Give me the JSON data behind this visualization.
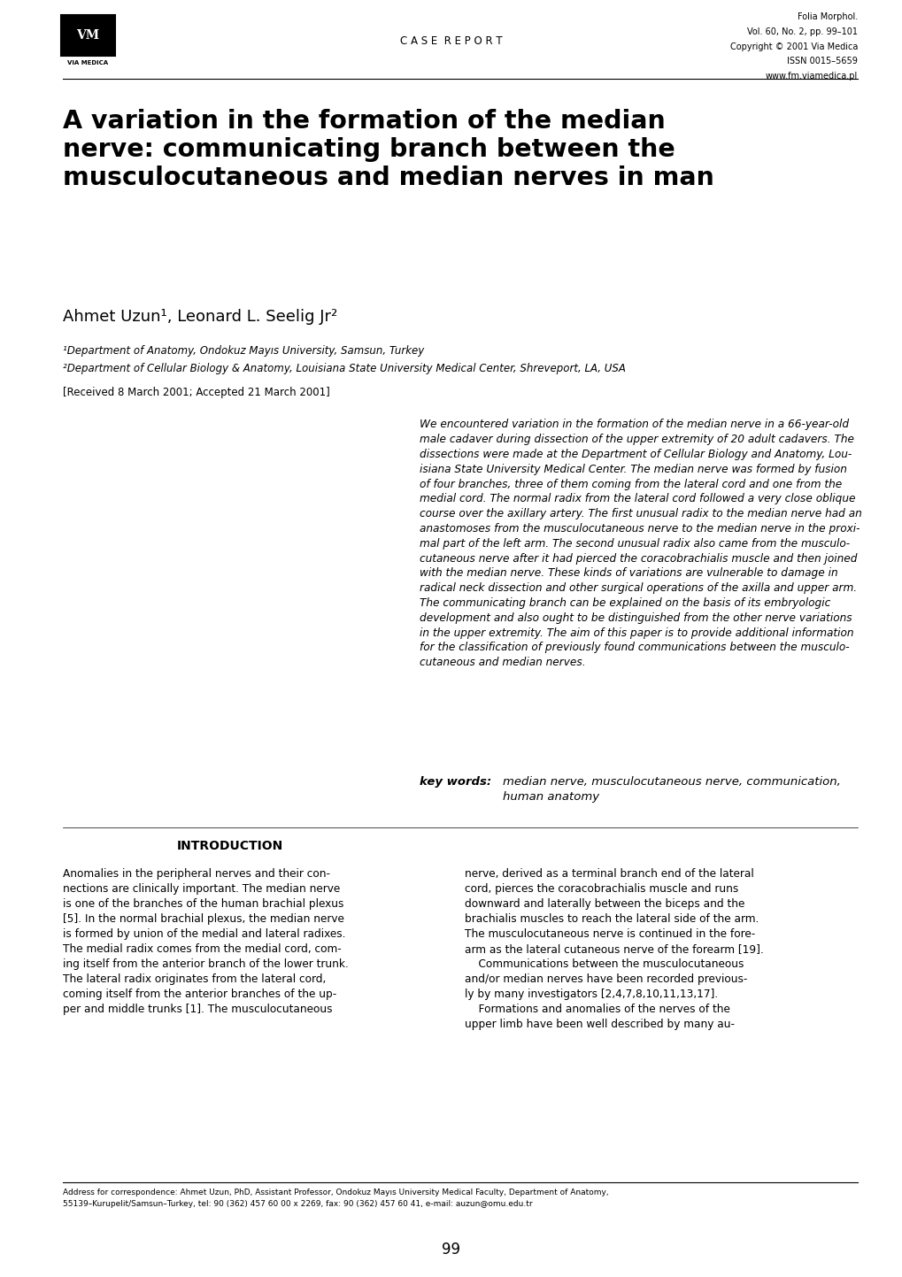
{
  "page_width": 10.2,
  "page_height": 14.43,
  "bg_color": "#ffffff",
  "header": {
    "journal_name": "Folia Morphol.",
    "journal_vol": "Vol. 60, No. 2, pp. 99–101",
    "journal_copy": "Copyright © 2001 Via Medica",
    "journal_issn": "ISSN 0015–5659",
    "journal_web": "www.fm.viamedica.pl",
    "section_label": "C A S E  R E P O R T"
  },
  "title": "A variation in the formation of the median\nnerve: communicating branch between the\nmusculocutaneous and median nerves in man",
  "authors": "Ahmet Uzun¹, Leonard L. Seelig Jr²",
  "affil1": "¹Department of Anatomy, Ondokuz Mayıs University, Samsun, Turkey",
  "affil2": "²Department of Cellular Biology & Anatomy, Louisiana State University Medical Center, Shreveport, LA, USA",
  "received": "[Received 8 March 2001; Accepted 21 March 2001]",
  "abstract": "We encountered variation in the formation of the median nerve in a 66-year-old\nmale cadaver during dissection of the upper extremity of 20 adult cadavers. The\ndissections were made at the Department of Cellular Biology and Anatomy, Lou-\nisiana State University Medical Center. The median nerve was formed by fusion\nof four branches, three of them coming from the lateral cord and one from the\nmedial cord. The normal radix from the lateral cord followed a very close oblique\ncourse over the axillary artery. The first unusual radix to the median nerve had an\nanastomoses from the musculocutaneous nerve to the median nerve in the proxi-\nmal part of the left arm. The second unusual radix also came from the musculo-\ncutaneous nerve after it had pierced the coracobrachialis muscle and then joined\nwith the median nerve. These kinds of variations are vulnerable to damage in\nradical neck dissection and other surgical operations of the axilla and upper arm.\nThe communicating branch can be explained on the basis of its embryologic\ndevelopment and also ought to be distinguished from the other nerve variations\nin the upper extremity. The aim of this paper is to provide additional information\nfor the classification of previously found communications between the musculo-\ncutaneous and median nerves.",
  "keywords_label": "key words: ",
  "keywords": "median nerve, musculocutaneous nerve, communication,\nhuman anatomy",
  "intro_heading": "INTRODUCTION",
  "intro_col1": "Anomalies in the peripheral nerves and their con-\nnections are clinically important. The median nerve\nis one of the branches of the human brachial plexus\n[5]. In the normal brachial plexus, the median nerve\nis formed by union of the medial and lateral radixes.\nThe medial radix comes from the medial cord, com-\ning itself from the anterior branch of the lower trunk.\nThe lateral radix originates from the lateral cord,\ncoming itself from the anterior branches of the up-\nper and middle trunks [1]. The musculocutaneous",
  "intro_col2": "nerve, derived as a terminal branch end of the lateral\ncord, pierces the coracobrachialis muscle and runs\ndownward and laterally between the biceps and the\nbrachialis muscles to reach the lateral side of the arm.\nThe musculocutaneous nerve is continued in the fore-\narm as the lateral cutaneous nerve of the forearm [19].\n    Communications between the musculocutaneous\nand/or median nerves have been recorded previous-\nly by many investigators [2,4,7,8,10,11,13,17].\n    Formations and anomalies of the nerves of the\nupper limb have been well described by many au-",
  "footer_address": "Address for correspondence: Ahmet Uzun, PhD, Assistant Professor, Ondokuz Mayıs University Medical Faculty, Department of Anatomy,\n55139–Kurupelit/Samsun–Turkey, tel: 90 (362) 457 60 00 x 2269, fax: 90 (362) 457 60 41, e-mail: auzun@omu.edu.tr",
  "page_number": "99"
}
